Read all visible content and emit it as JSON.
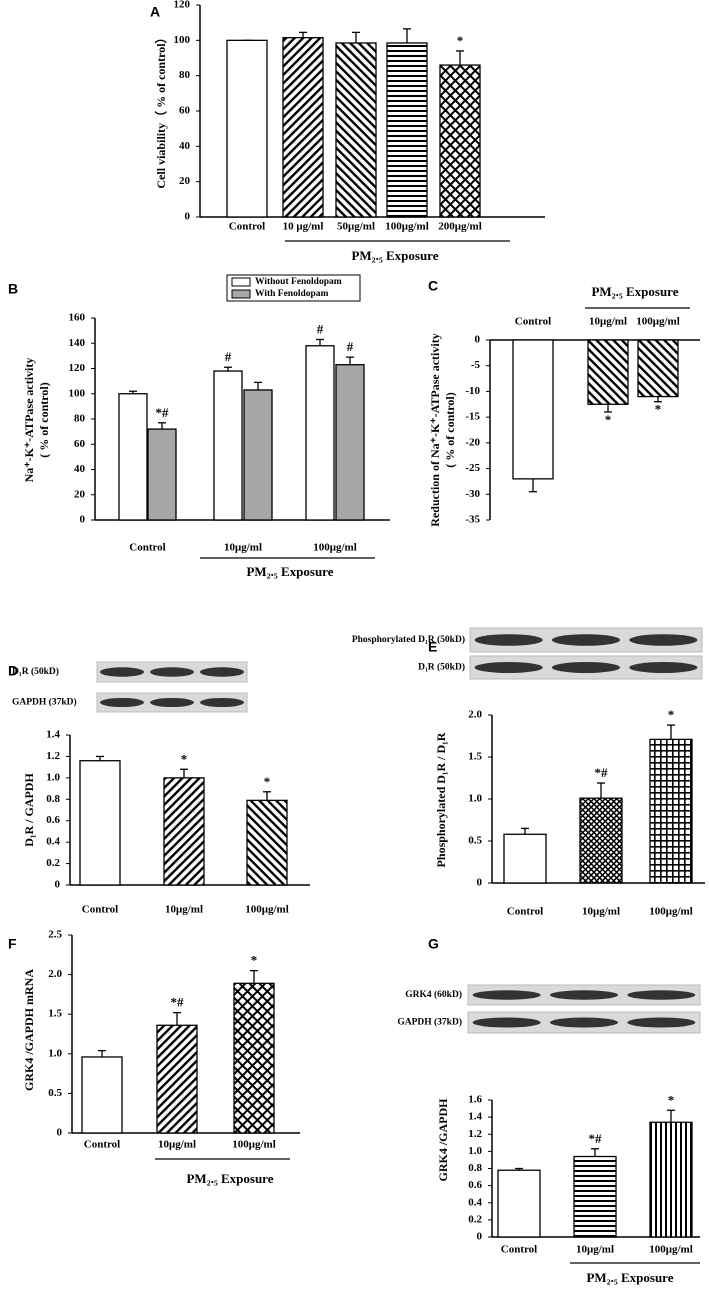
{
  "chart_data": [
    {
      "type": "bar",
      "panel": "A",
      "ylabel": [
        "Cell viability（ % of control）"
      ],
      "categories": [
        "Control",
        "10 μg/ml",
        "50μg/ml",
        "100μg/ml",
        "200μg/ml"
      ],
      "group_label": "PM₂.₅ Exposure",
      "series": [
        {
          "color": "#ffffff",
          "patterns": [
            "none",
            "diag-up",
            "diag-down",
            "horizontal",
            "crosshatch"
          ],
          "values": [
            100,
            101.5,
            98.5,
            98.5,
            86
          ],
          "errors": [
            0,
            3,
            6,
            8,
            8
          ],
          "markers": [
            null,
            null,
            null,
            null,
            "*"
          ]
        }
      ],
      "ylim": [
        0,
        120
      ],
      "yticks": [
        0,
        20,
        40,
        60,
        80,
        100,
        120
      ],
      "grid": false
    },
    {
      "type": "bar",
      "panel": "B",
      "ylabel": [
        "Na⁺-K⁺-ATPase activity",
        "( % of control)"
      ],
      "categories": [
        "Control",
        "10μg/ml",
        "100μg/ml"
      ],
      "group_label": "PM₂.₅ Exposure",
      "series": [
        {
          "name": "Without Fenoldopam",
          "color": "#ffffff",
          "values": [
            100,
            118,
            138
          ],
          "errors": [
            2,
            3,
            5
          ],
          "markers": [
            null,
            "#",
            "#"
          ]
        },
        {
          "name": "With Fenoldopam",
          "color": "#a6a6a6",
          "values": [
            72,
            103,
            123
          ],
          "errors": [
            5,
            6,
            6
          ],
          "markers": [
            "*#",
            null,
            "#"
          ]
        }
      ],
      "ylim": [
        0,
        160
      ],
      "yticks": [
        0,
        20,
        40,
        60,
        80,
        100,
        120,
        140,
        160
      ],
      "grid": false,
      "legend": "top"
    },
    {
      "type": "bar",
      "panel": "C",
      "ylabel": [
        "Reduction of  Na⁺-K⁺-ATPase activity",
        "( % of control)"
      ],
      "categories": [
        "Control",
        "10μg/ml",
        "100μg/ml"
      ],
      "group_label": "PM₂.₅ Exposure",
      "series": [
        {
          "color": "#ffffff",
          "patterns": [
            "none",
            "diag-down",
            "diag-down"
          ],
          "values": [
            -27,
            -12.5,
            -11
          ],
          "errors": [
            2.5,
            1.5,
            1
          ],
          "markers": [
            null,
            "*",
            "*"
          ]
        }
      ],
      "ylim": [
        -35,
        0
      ],
      "yticks": [
        -35,
        -30,
        -25,
        -20,
        -15,
        -10,
        -5,
        0
      ],
      "grid": false
    },
    {
      "type": "bar",
      "panel": "D",
      "ylabel": [
        "D₁R / GAPDH"
      ],
      "blots": [
        "D₁R (50kD)",
        "GAPDH (37kD)"
      ],
      "categories": [
        "Control",
        "10μg/ml",
        "100μg/ml"
      ],
      "series": [
        {
          "color": "#ffffff",
          "patterns": [
            "none",
            "diag-up",
            "diag-down"
          ],
          "values": [
            1.16,
            1.0,
            0.79
          ],
          "errors": [
            0.04,
            0.08,
            0.08
          ],
          "markers": [
            null,
            "*",
            "*"
          ]
        }
      ],
      "ylim": [
        0,
        1.4
      ],
      "yticks": [
        0,
        0.2,
        0.4,
        0.6,
        0.8,
        {
          "value": 1,
          "label": "1.0"
        },
        1.2,
        1.4
      ],
      "grid": false
    },
    {
      "type": "bar",
      "panel": "E",
      "ylabel": [
        "Phosphorylated D₁R / D₁R"
      ],
      "blots": [
        "Phosphorylated D₁R (50kD)",
        "D₁R (50kD)"
      ],
      "categories": [
        "Control",
        "10μg/ml",
        "100μg/ml"
      ],
      "series": [
        {
          "color": "#ffffff",
          "patterns": [
            "none",
            "dots",
            "grid"
          ],
          "values": [
            0.58,
            1.01,
            1.71
          ],
          "errors": [
            0.07,
            0.18,
            0.17
          ],
          "markers": [
            null,
            "*#",
            "*"
          ]
        }
      ],
      "ylim": [
        0,
        2
      ],
      "yticks": [
        0,
        0.5,
        {
          "value": 1,
          "label": "1.0"
        },
        1.5,
        {
          "value": 2,
          "label": "2.0"
        }
      ],
      "grid": false
    },
    {
      "type": "bar",
      "panel": "F",
      "ylabel": [
        "GRK4 /GAPDH mRNA"
      ],
      "categories": [
        "Control",
        "10μg/ml",
        "100μg/ml"
      ],
      "group_label": "PM₂.₅ Exposure",
      "series": [
        {
          "color": "#ffffff",
          "patterns": [
            "none",
            "diag-up",
            "crosshatch"
          ],
          "values": [
            0.96,
            1.36,
            1.89
          ],
          "errors": [
            0.08,
            0.16,
            0.16
          ],
          "markers": [
            null,
            "*#",
            "*"
          ]
        }
      ],
      "ylim": [
        0,
        2.5
      ],
      "yticks": [
        0,
        0.5,
        {
          "value": 1,
          "label": "1.0"
        },
        1.5,
        {
          "value": 2,
          "label": "2.0"
        },
        2.5
      ],
      "grid": false
    },
    {
      "type": "bar",
      "panel": "G",
      "ylabel": [
        "GRK4 /GAPDH"
      ],
      "blots": [
        "GRK4 (60kD)",
        "GAPDH (37kD)"
      ],
      "categories": [
        "Control",
        "10μg/ml",
        "100μg/ml"
      ],
      "group_label": "PM₂.₅ Exposure",
      "series": [
        {
          "color": "#ffffff",
          "patterns": [
            "none",
            "horizontal",
            "vertical"
          ],
          "values": [
            0.78,
            0.94,
            1.34
          ],
          "errors": [
            0.02,
            0.09,
            0.14
          ],
          "markers": [
            null,
            "*#",
            "*"
          ]
        }
      ],
      "ylim": [
        0,
        1.6
      ],
      "yticks": [
        0,
        0.2,
        0.4,
        0.6,
        0.8,
        {
          "value": 1,
          "label": "1.0"
        },
        1.2,
        1.4,
        1.6
      ],
      "grid": false
    }
  ]
}
